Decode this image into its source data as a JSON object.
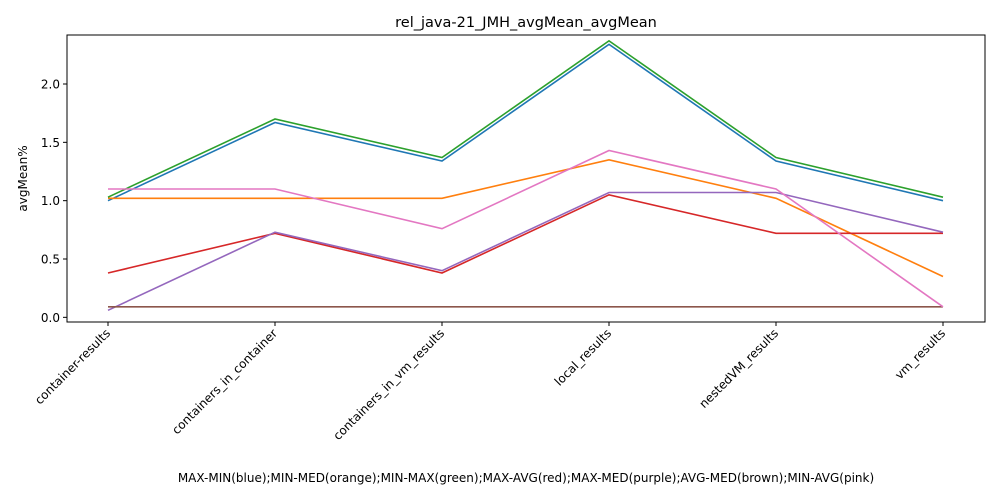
{
  "chart_data": {
    "type": "line",
    "title": "rel_java-21_JMH_avgMean_avgMean",
    "xlabel": "MAX-MIN(blue);MIN-MED(orange);MIN-MAX(green);MAX-AVG(red);MAX-MED(purple);AVG-MED(brown);MIN-AVG(pink)",
    "ylabel": "avgMean%",
    "categories": [
      "container-results",
      "containers_in_container",
      "containers_in_vm_results",
      "local_results",
      "nestedVM_results",
      "vm_results"
    ],
    "ylim": [
      -0.04,
      2.42
    ],
    "yticks": [
      "0.0",
      "0.5",
      "1.0",
      "1.5",
      "2.0"
    ],
    "grid": false,
    "series": [
      {
        "color": "#1f77b4",
        "values": [
          1.0,
          1.67,
          1.34,
          2.34,
          1.34,
          1.0
        ]
      },
      {
        "color": "#ff7f0e",
        "values": [
          1.02,
          1.02,
          1.02,
          1.35,
          1.02,
          0.35
        ]
      },
      {
        "color": "#2ca02c",
        "values": [
          1.03,
          1.7,
          1.37,
          2.37,
          1.37,
          1.03
        ]
      },
      {
        "color": "#d62728",
        "values": [
          0.38,
          0.72,
          0.38,
          1.05,
          0.72,
          0.72
        ]
      },
      {
        "color": "#9467bd",
        "values": [
          0.06,
          0.73,
          0.4,
          1.07,
          1.07,
          0.73
        ]
      },
      {
        "color": "#8c564b",
        "values": [
          0.09,
          0.09,
          0.09,
          0.09,
          0.09,
          0.09
        ]
      },
      {
        "color": "#e377c2",
        "values": [
          1.1,
          1.1,
          0.76,
          1.43,
          1.1,
          0.09
        ]
      }
    ]
  }
}
